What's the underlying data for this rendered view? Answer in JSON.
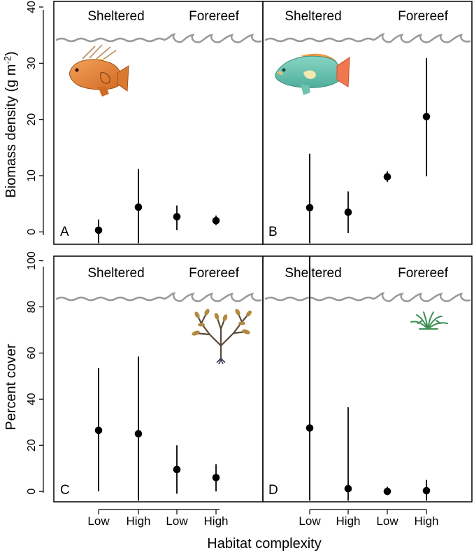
{
  "figure": {
    "xlabel": "Habitat complexity",
    "top_ylabel": "Biomass density (g m",
    "top_ylabel_sup": "-2",
    "top_ylabel_close": ")",
    "bottom_ylabel": "Percent cover",
    "sheltered_label": "Sheltered",
    "forereef_label": "Forereef"
  },
  "chart_data": [
    {
      "type": "scatter",
      "panel": "A",
      "subject": "hogfish",
      "categories": [
        "Low",
        "High",
        "Low",
        "High"
      ],
      "groups": [
        "Sheltered",
        "Sheltered",
        "Forereef",
        "Forereef"
      ],
      "values": [
        0.3,
        4.4,
        2.7,
        2.0
      ],
      "lower": [
        -2.0,
        -2.0,
        0.3,
        1.2
      ],
      "upper": [
        2.2,
        11.2,
        4.7,
        2.9
      ],
      "ylim": [
        -2.2,
        41
      ],
      "yticks": [
        0,
        10,
        20,
        30,
        40
      ],
      "ylabel": "Biomass density (g m-2)",
      "xlabel": ""
    },
    {
      "type": "scatter",
      "panel": "B",
      "subject": "parrotfish",
      "categories": [
        "Low",
        "High",
        "Low",
        "High"
      ],
      "groups": [
        "Sheltered",
        "Sheltered",
        "Forereef",
        "Forereef"
      ],
      "values": [
        4.3,
        3.5,
        9.8,
        20.5
      ],
      "lower": [
        -2.0,
        -0.2,
        8.9,
        9.9
      ],
      "upper": [
        13.9,
        7.2,
        10.8,
        30.9
      ],
      "ylim": [
        -2.2,
        41
      ],
      "yticks": [
        0,
        10,
        20,
        30,
        40
      ],
      "ylabel": "",
      "xlabel": ""
    },
    {
      "type": "scatter",
      "panel": "C",
      "subject": "macroalga",
      "categories": [
        "Low",
        "High",
        "Low",
        "High"
      ],
      "groups": [
        "Sheltered",
        "Sheltered",
        "Forereef",
        "Forereef"
      ],
      "values": [
        26.5,
        25.0,
        9.5,
        6.0
      ],
      "lower": [
        0,
        -4,
        -1,
        0
      ],
      "upper": [
        53.5,
        58.5,
        20.0,
        11.8
      ],
      "ylim": [
        -4.5,
        102
      ],
      "yticks": [
        0,
        20,
        40,
        60,
        80,
        100
      ],
      "ylabel": "Percent cover",
      "xlabel": ""
    },
    {
      "type": "scatter",
      "panel": "D",
      "subject": "seagrass",
      "categories": [
        "Low",
        "High",
        "Low",
        "High"
      ],
      "groups": [
        "Sheltered",
        "Sheltered",
        "Forereef",
        "Forereef"
      ],
      "values": [
        27.5,
        1.2,
        0.0,
        0.3
      ],
      "lower": [
        -4,
        -4,
        -1.5,
        -4
      ],
      "upper": [
        102,
        36.5,
        2.0,
        5.0
      ],
      "ylim": [
        -4.5,
        102
      ],
      "yticks": [
        0,
        20,
        40,
        60,
        80,
        100
      ],
      "ylabel": "",
      "xlabel": "Habitat complexity"
    }
  ]
}
